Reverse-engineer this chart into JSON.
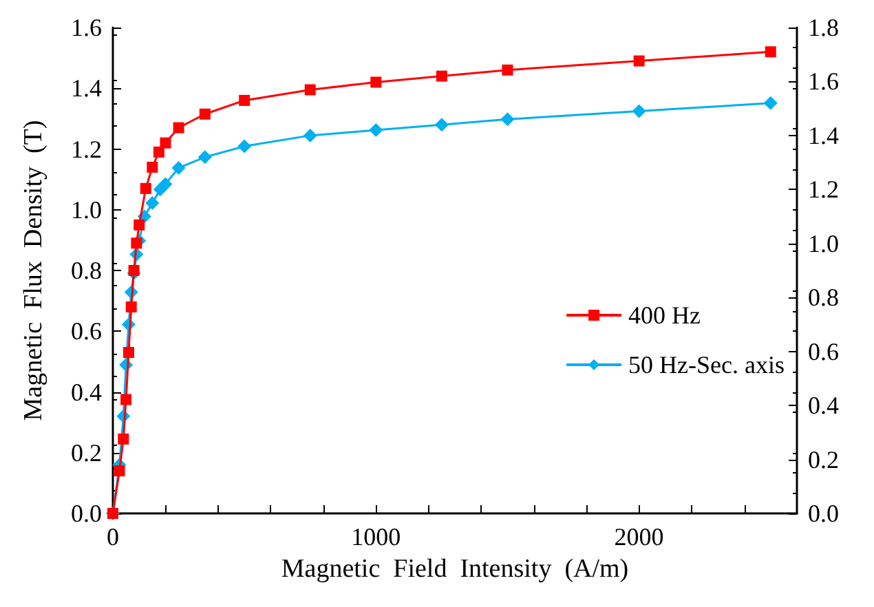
{
  "chart_data": {
    "type": "line",
    "xlabel": "Magnetic  Field  Intensity  (A/m)",
    "ylabel": "Magnetic  Flux  Density  (T)",
    "xlim": [
      0,
      2600
    ],
    "xticks": [
      0,
      {
        "value": 200,
        "label": null
      },
      {
        "value": 400,
        "label": null
      },
      {
        "value": 600,
        "label": null
      },
      {
        "value": 800,
        "label": null
      },
      1000,
      {
        "value": 1200,
        "label": null
      },
      {
        "value": 1400,
        "label": null
      },
      {
        "value": 1600,
        "label": null
      },
      {
        "value": 1800,
        "label": null
      },
      2000,
      {
        "value": 2200,
        "label": null
      },
      {
        "value": 2400,
        "label": null
      }
    ],
    "ylim": [
      0,
      1.6
    ],
    "yticks": [
      {
        "value": 0,
        "label": "0.0"
      },
      {
        "value": 0.2,
        "label": "0.2"
      },
      {
        "value": 0.4,
        "label": "0.4"
      },
      {
        "value": 0.6,
        "label": "0.6"
      },
      {
        "value": 0.8,
        "label": "0.8"
      },
      {
        "value": 1.0,
        "label": "1.0"
      },
      {
        "value": 1.2,
        "label": "1.2"
      },
      {
        "value": 1.4,
        "label": "1.4"
      },
      {
        "value": 1.6,
        "label": "1.6"
      }
    ],
    "y2lim": [
      0,
      1.8
    ],
    "y2ticks": [
      {
        "value": 0,
        "label": "0.0"
      },
      {
        "value": 0.2,
        "label": "0.2"
      },
      {
        "value": 0.4,
        "label": "0.4"
      },
      {
        "value": 0.6,
        "label": "0.6"
      },
      {
        "value": 0.8,
        "label": "0.8"
      },
      {
        "value": 1.0,
        "label": "1.0"
      },
      {
        "value": 1.2,
        "label": "1.2"
      },
      {
        "value": 1.4,
        "label": "1.4"
      },
      {
        "value": 1.6,
        "label": "1.6"
      },
      {
        "value": 1.8,
        "label": "1.8"
      }
    ],
    "grid": false,
    "legend": "right",
    "series": [
      {
        "name": "400 Hz",
        "color": "#ff0000",
        "marker": "square",
        "x": [
          0,
          25,
          40,
          50,
          60,
          70,
          80,
          90,
          100,
          125,
          150,
          175,
          200,
          250,
          350,
          500,
          750,
          1000,
          1250,
          1500,
          2000,
          2500
        ],
        "values": [
          0,
          0.14,
          0.245,
          0.375,
          0.53,
          0.68,
          0.8,
          0.89,
          0.95,
          1.07,
          1.14,
          1.19,
          1.22,
          1.27,
          1.315,
          1.36,
          1.395,
          1.42,
          1.44,
          1.46,
          1.49,
          1.52
        ]
      },
      {
        "name": "50 Hz-Sec. axis",
        "color": "#00b0f0",
        "marker": "diamond",
        "axis": "y2",
        "x": [
          0,
          25,
          40,
          50,
          60,
          70,
          80,
          90,
          100,
          120,
          150,
          180,
          200,
          250,
          350,
          500,
          750,
          1000,
          1250,
          1500,
          2000,
          2500
        ],
        "values": [
          0,
          0.18,
          0.36,
          0.55,
          0.7,
          0.82,
          0.89,
          0.96,
          1.01,
          1.1,
          1.15,
          1.2,
          1.22,
          1.28,
          1.32,
          1.36,
          1.4,
          1.42,
          1.44,
          1.46,
          1.49,
          1.52
        ]
      }
    ]
  }
}
